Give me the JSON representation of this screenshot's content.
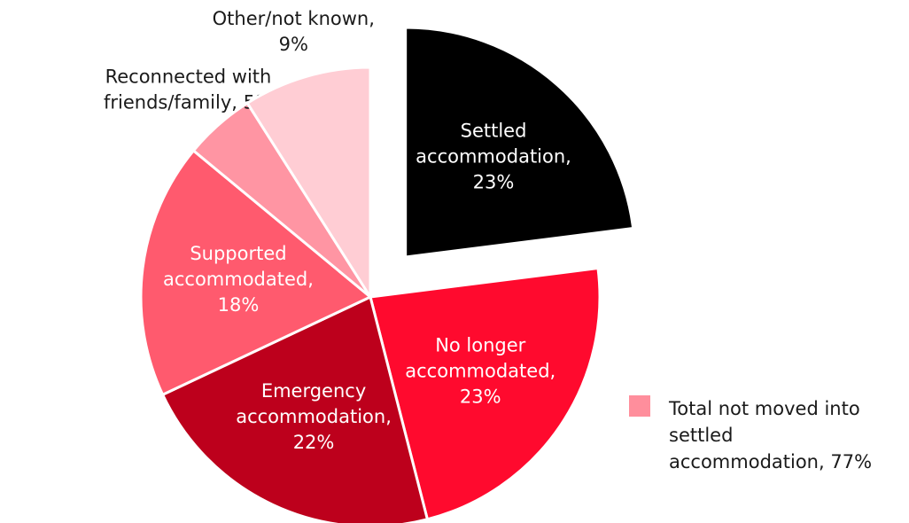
{
  "chart_data": {
    "type": "pie",
    "categories": [
      "Settled accommodation",
      "No longer accommodated",
      "Emergency accommodation",
      "Supported accommodated",
      "Reconnected with friends/family",
      "Other/not known"
    ],
    "values": [
      23,
      23,
      22,
      18,
      5,
      9
    ],
    "value_labels": [
      [
        "Settled",
        "accommodation,",
        "23%"
      ],
      [
        "No longer",
        "accommodated,",
        "23%"
      ],
      [
        "Emergency",
        "accommodation,",
        "22%"
      ],
      [
        "Supported",
        "accommodated,",
        "18%"
      ],
      [
        "Reconnected with",
        "friends/family, 5%"
      ],
      [
        "Other/not known,",
        "9%"
      ]
    ],
    "colors": [
      "#000000",
      "#ff0a2e",
      "#bd001c",
      "#ff5a6e",
      "#ff95a3",
      "#ffcdd4"
    ],
    "label_colors": [
      "#ffffff",
      "#ffffff",
      "#ffffff",
      "#ffffff",
      "#1a1a1a",
      "#1a1a1a"
    ],
    "exploded": [
      true,
      false,
      false,
      false,
      false,
      false
    ],
    "legend": {
      "label": [
        "Total not moved into",
        "settled",
        "accommodation, 77%"
      ],
      "color": "#ff8e9c"
    }
  }
}
